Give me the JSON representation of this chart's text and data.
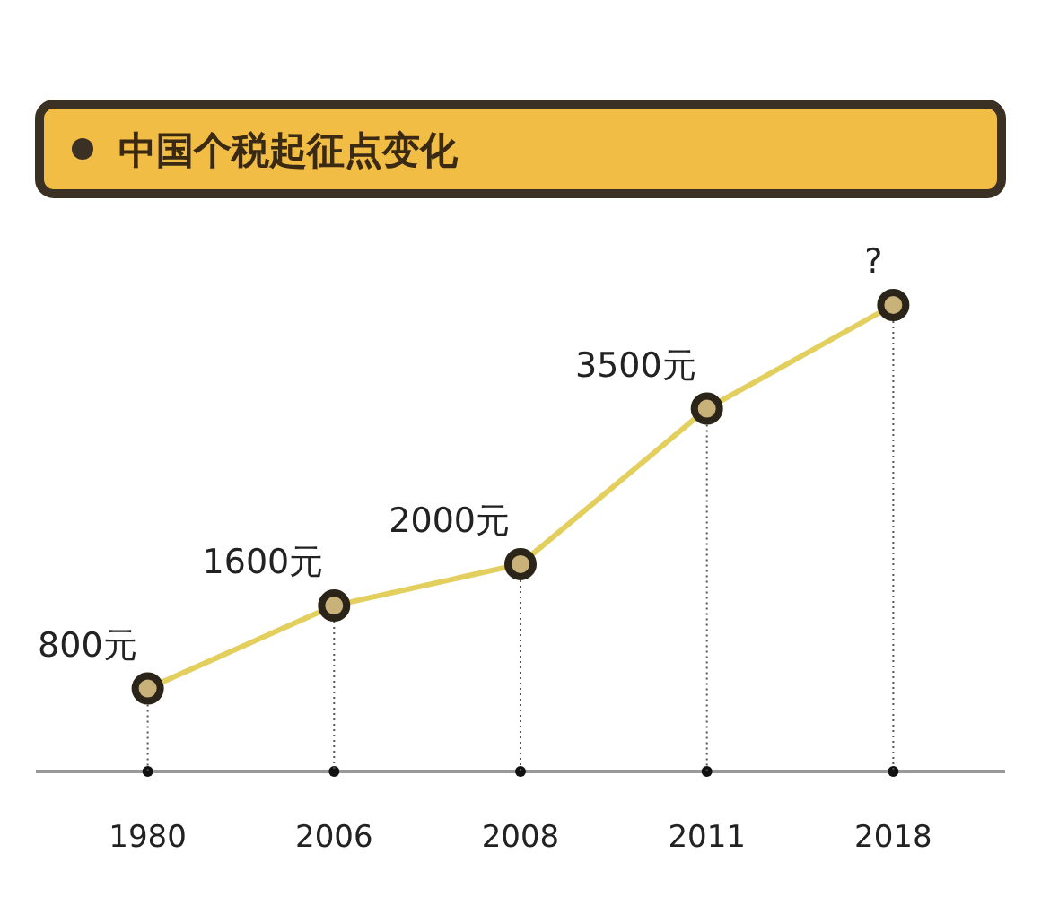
{
  "chart_data": {
    "type": "line",
    "title": "中国个税起征点变化",
    "categories": [
      "1980",
      "2006",
      "2008",
      "2011",
      "2018"
    ],
    "series": [
      {
        "color": "#e2cf5e",
        "values": [
          800,
          1600,
          2000,
          3500,
          4500
        ],
        "value_labels": [
          "800元",
          "1600元",
          "2000元",
          "3500元",
          "?"
        ]
      }
    ],
    "tick_labels": "x",
    "marker": "circle",
    "line_style": "solid",
    "grid": "x"
  }
}
